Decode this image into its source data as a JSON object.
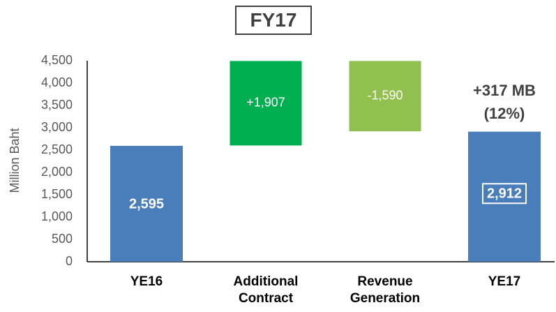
{
  "chart_data": {
    "type": "waterfall",
    "title": "FY17",
    "ylabel": "Million Baht",
    "categories": [
      "YE16",
      "Additional Contract",
      "Revenue Generation",
      "YE17"
    ],
    "values": [
      2595,
      1907,
      -1590,
      2912
    ],
    "value_labels": [
      "2,595",
      "+1,907",
      "-1,590",
      "2,912"
    ],
    "colors": [
      "#4a7ebb",
      "#00b050",
      "#92c050",
      "#4a7ebb"
    ],
    "ylim": [
      0,
      4500
    ],
    "yticks": [
      0,
      500,
      {
        "value": 1000,
        "label": "1,000"
      },
      {
        "value": 1500,
        "label": "1,500"
      },
      {
        "value": 2000,
        "label": "2,000"
      },
      {
        "value": 2500,
        "label": "2,500"
      },
      {
        "value": 3000,
        "label": "3,000"
      },
      {
        "value": 3500,
        "label": "3,500"
      },
      {
        "value": 4000,
        "label": "4,000"
      },
      {
        "value": 4500,
        "label": "4,500"
      }
    ],
    "annotation": [
      "+317 MB",
      "(12%)"
    ],
    "grid": false
  }
}
